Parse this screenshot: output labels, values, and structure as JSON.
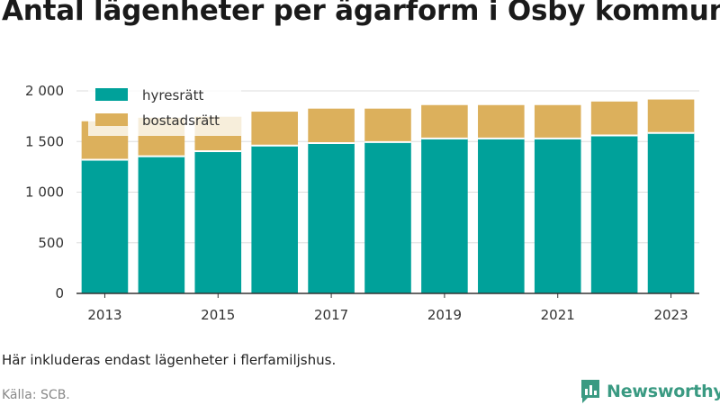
{
  "title": "Antal lägenheter per ägarform i Osby kommun",
  "note": "Här inkluderas endast lägenheter i flerfamiljshus.",
  "source": "Källa: SCB.",
  "brand": "Newsworthy",
  "colors": {
    "hyresratt": "#00a19a",
    "bostadsratt": "#dcb05c",
    "grid": "#dddddd",
    "axis": "#333333",
    "brand": "#3a9a82"
  },
  "chart_data": {
    "type": "bar",
    "stacked": true,
    "categories": [
      "2013",
      "2014",
      "2015",
      "2016",
      "2017",
      "2018",
      "2019",
      "2020",
      "2021",
      "2022",
      "2023"
    ],
    "series": [
      {
        "name": "hyresrätt",
        "values": [
          1320,
          1355,
          1405,
          1460,
          1485,
          1495,
          1530,
          1530,
          1530,
          1560,
          1585
        ]
      },
      {
        "name": "bostadsrätt",
        "values": [
          380,
          380,
          340,
          335,
          340,
          330,
          330,
          330,
          330,
          335,
          330
        ]
      }
    ],
    "ylim": [
      0,
      2000
    ],
    "yticks": [
      0,
      500,
      1000,
      1500,
      2000
    ],
    "ytick_labels": [
      "0",
      "500",
      "1 000",
      "1 500",
      "2 000"
    ],
    "xtick_labels": [
      "2013",
      "2015",
      "2017",
      "2019",
      "2021",
      "2023"
    ],
    "grid": true,
    "legend_position": "top-left"
  }
}
